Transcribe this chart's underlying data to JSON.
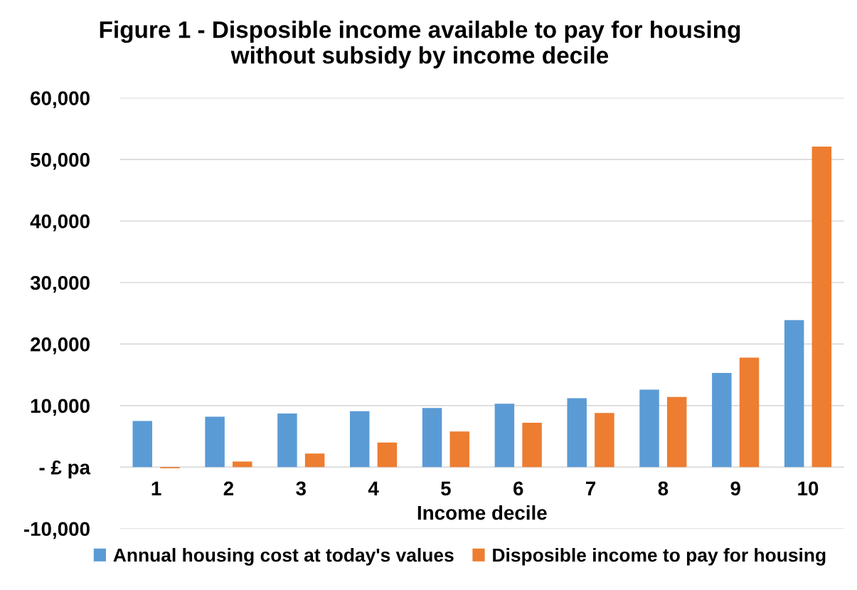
{
  "chart_data": {
    "type": "bar",
    "title": "Figure 1 - Disposible income available to pay for housing\nwithout subsidy by income decile",
    "xlabel": "Income decile",
    "categories": [
      "1",
      "2",
      "3",
      "4",
      "5",
      "6",
      "7",
      "8",
      "9",
      "10"
    ],
    "series": [
      {
        "name": "Annual housing cost at today's values",
        "color": "#5b9bd5",
        "values": [
          7500,
          8200,
          8700,
          9100,
          9600,
          10300,
          11200,
          12600,
          15300,
          23900
        ]
      },
      {
        "name": "Disposible income to pay for housing",
        "color": "#ed7d31",
        "values": [
          -200,
          900,
          2200,
          4000,
          5800,
          7200,
          8800,
          11400,
          17800,
          52100
        ]
      }
    ],
    "ylim": [
      -10000,
      60000
    ],
    "yticks": [
      {
        "value": -10000,
        "label": "-10,000"
      },
      {
        "value": 0,
        "label": "- £ pa"
      },
      {
        "value": 10000,
        "label": "10,000"
      },
      {
        "value": 20000,
        "label": "20,000"
      },
      {
        "value": 30000,
        "label": "30,000"
      },
      {
        "value": 40000,
        "label": "40,000"
      },
      {
        "value": 50000,
        "label": "50,000"
      },
      {
        "value": 60000,
        "label": "60,000"
      }
    ],
    "grid": "y",
    "legend": "bottom"
  }
}
